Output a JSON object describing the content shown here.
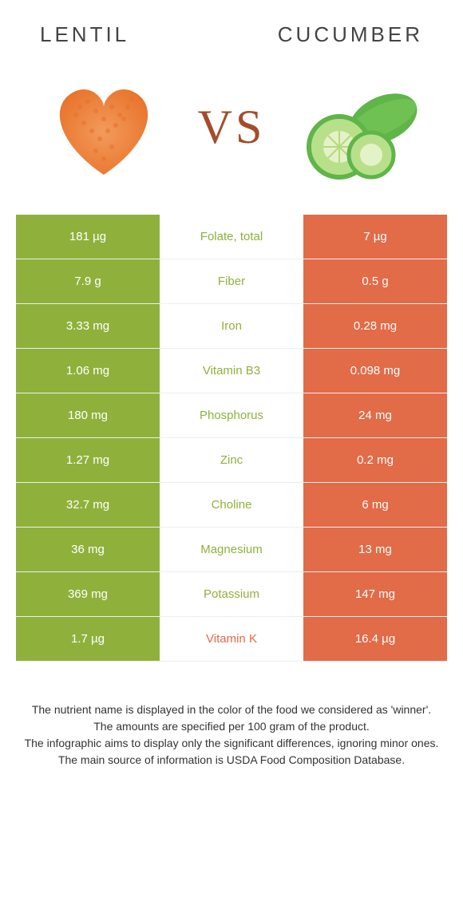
{
  "food_left": {
    "name": "LENTIL",
    "color": "#8fb13c",
    "image_primary": "#e8732a",
    "image_secondary": "#f29b5c"
  },
  "food_right": {
    "name": "CUCUMBER",
    "color": "#e26b48",
    "image_primary": "#5fb548",
    "image_secondary": "#b8e08a"
  },
  "vs_label": "VS",
  "vs_color": "#a34d2a",
  "nutrients": [
    {
      "label": "Folate, total",
      "left": "181 µg",
      "right": "7 µg",
      "winner": "left"
    },
    {
      "label": "Fiber",
      "left": "7.9 g",
      "right": "0.5 g",
      "winner": "left"
    },
    {
      "label": "Iron",
      "left": "3.33 mg",
      "right": "0.28 mg",
      "winner": "left"
    },
    {
      "label": "Vitamin B3",
      "left": "1.06 mg",
      "right": "0.098 mg",
      "winner": "left"
    },
    {
      "label": "Phosphorus",
      "left": "180 mg",
      "right": "24 mg",
      "winner": "left"
    },
    {
      "label": "Zinc",
      "left": "1.27 mg",
      "right": "0.2 mg",
      "winner": "left"
    },
    {
      "label": "Choline",
      "left": "32.7 mg",
      "right": "6 mg",
      "winner": "left"
    },
    {
      "label": "Magnesium",
      "left": "36 mg",
      "right": "13 mg",
      "winner": "left"
    },
    {
      "label": "Potassium",
      "left": "369 mg",
      "right": "147 mg",
      "winner": "left"
    },
    {
      "label": "Vitamin K",
      "left": "1.7 µg",
      "right": "16.4 µg",
      "winner": "right"
    }
  ],
  "footnotes": [
    "The nutrient name is displayed in the color of the food we considered as 'winner'.",
    "The amounts are specified per 100 gram of the product.",
    "The infographic aims to display only the significant differences, ignoring minor ones.",
    "The main source of information is USDA Food Composition Database."
  ]
}
